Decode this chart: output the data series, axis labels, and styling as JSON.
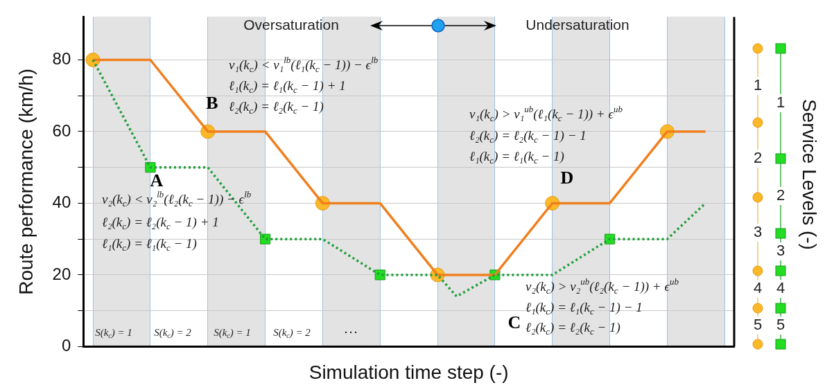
{
  "chart_data": {
    "type": "line",
    "xlabel": "Simulation time step (-)",
    "ylabel": "Route performance (km/h)",
    "y2label": "Service Levels (-)",
    "categories": [
      null,
      null,
      null,
      null,
      null,
      null,
      null,
      null,
      null,
      null,
      null,
      null,
      null,
      null,
      null,
      null,
      null,
      null,
      null,
      null,
      null,
      null,
      null,
      null,
      null,
      null,
      null,
      null,
      null,
      null,
      null,
      null,
      null,
      null
    ],
    "ylim": [
      0,
      92
    ],
    "yticks": [
      0,
      {
        "value": 10,
        "label": null
      },
      20,
      {
        "value": 30,
        "label": null
      },
      40,
      {
        "value": 50,
        "label": null
      },
      60,
      {
        "value": 70,
        "label": null
      },
      80
    ],
    "grid": true,
    "legend": false,
    "series": [
      {
        "color": "#f07f1e",
        "marker": "none",
        "line_style": "solid",
        "values": [
          80,
          null,
          null,
          80,
          null,
          null,
          60,
          null,
          null,
          60,
          null,
          null,
          40,
          null,
          null,
          40,
          null,
          null,
          20,
          null,
          null,
          20,
          null,
          null,
          40,
          null,
          null,
          40,
          null,
          null,
          60,
          null,
          60,
          null
        ]
      },
      {
        "type": "scatter",
        "color": "#fbb829",
        "marker": "circle",
        "values": [
          80,
          null,
          null,
          null,
          null,
          null,
          60,
          null,
          null,
          null,
          null,
          null,
          40,
          null,
          null,
          null,
          null,
          null,
          20,
          null,
          null,
          null,
          null,
          null,
          40,
          null,
          null,
          null,
          null,
          null,
          60,
          null,
          null,
          null
        ]
      },
      {
        "color": "#1e9e3a",
        "marker": "none",
        "line_style": "dotted",
        "values": [
          80,
          null,
          null,
          50,
          null,
          null,
          50,
          null,
          null,
          30,
          null,
          null,
          30,
          null,
          null,
          20,
          null,
          null,
          20,
          14,
          null,
          20,
          null,
          null,
          20,
          null,
          null,
          30,
          null,
          null,
          30,
          null,
          40,
          null
        ]
      },
      {
        "type": "scatter",
        "color": "#22dd22",
        "marker": "square",
        "values": [
          null,
          null,
          null,
          50,
          null,
          null,
          null,
          null,
          null,
          30,
          null,
          null,
          null,
          null,
          null,
          20,
          null,
          null,
          null,
          null,
          null,
          20,
          null,
          null,
          null,
          null,
          null,
          30,
          null,
          null,
          null,
          null,
          null,
          null
        ]
      }
    ],
    "annotations": [
      "Oversaturation",
      "Undersaturation",
      "v₁(k$_{c}$) < v₁$^{lb}$(ℓ₁(k$_{c}$ − 1)) − ϵ$^{lb}$",
      "ℓ₁(k$_{c}$) = ℓ₁(k$_{c}$ − 1) + 1",
      "ℓ₂(k$_{c}$) = ℓ₂(k$_{c}$ − 1)",
      "v₂(k$_{c}$) < v₂$^{lb}$(ℓ₂(k$_{c}$ − 1)) − ϵ$^{lb}$",
      "ℓ₂(k$_{c}$) = ℓ₂(k$_{c}$ − 1) + 1",
      "ℓ₁(k$_{c}$) = ℓ₁(k$_{c}$ − 1)",
      "v₁(k$_{c}$) > v₁$^{ub}$(ℓ₁(k$_{c}$ − 1)) + ϵ$^{ub}$",
      "ℓ₂(k$_{c}$) = ℓ₂(k$_{c}$ − 1) − 1",
      "ℓ₁(k$_{c}$) = ℓ₁(k$_{c}$ − 1)",
      "v₂(k$_{c}$) > v₂$^{ub}$(ℓ₂(k$_{c}$ − 1)) + ϵ$^{ub}$",
      "ℓ₁(k$_{c}$) = ℓ₁(k$_{c}$ − 1) − 1",
      "ℓ₂(k$_{c}$) = ℓ₂(k$_{c}$ − 1)",
      "S(k$_{c}$) = 1",
      "S(k$_{c}$) = 2",
      "S(k$_{c}$) = 1",
      "S(k$_{c}$) = 2",
      "···",
      "A",
      "B",
      "C",
      "D",
      "1",
      "2",
      "3",
      "4",
      "5",
      "1",
      "2",
      "3",
      "4",
      "5"
    ]
  }
}
